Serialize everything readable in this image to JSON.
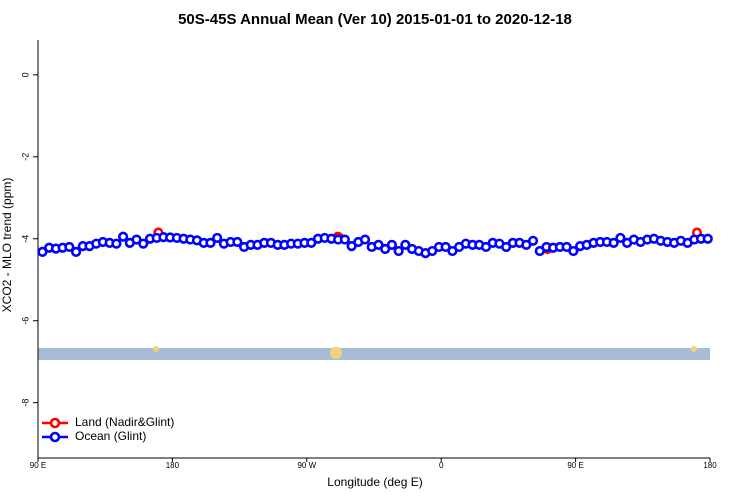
{
  "chart_data": {
    "type": "scatter",
    "title": "50S-45S Annual Mean (Ver 10)   2015-01-01 to 2020-12-18",
    "x_label": "Longitude (deg E)",
    "y_label": "XCO2 - MLO trend (ppm)",
    "xlim": [
      90,
      540
    ],
    "xticks": [
      {
        "value": 90,
        "label": "90 E"
      },
      {
        "value": 180,
        "label": "180"
      },
      {
        "value": 270,
        "label": "90 W"
      },
      {
        "value": 360,
        "label": "0"
      },
      {
        "value": 450,
        "label": "90 E"
      },
      {
        "value": 540,
        "label": "180"
      }
    ],
    "ylim": [
      -9.35,
      0.85
    ],
    "yticks": [
      0,
      -2,
      -4,
      -6,
      -8
    ],
    "legend": "bottom-left",
    "series": [
      {
        "name": "Land (Nadir&Glint)",
        "color": "#ff0000",
        "x": [
          170.6,
          290.8,
          292,
          431.2,
          531.3
        ],
        "values": [
          -3.85,
          -3.95,
          -3.98,
          -4.25,
          -3.85
        ]
      },
      {
        "name": "Ocean (Glint)",
        "color": "#0000ff",
        "x": [
          93,
          97.5,
          102,
          106.5,
          111,
          115.5,
          120,
          124.5,
          129,
          133.5,
          138,
          142.5,
          147,
          151.5,
          156,
          160.5,
          165,
          169.5,
          174,
          178.5,
          183,
          187.5,
          192,
          196.5,
          201,
          205.5,
          210,
          214.5,
          219,
          223.5,
          228,
          232.5,
          237,
          241.5,
          246,
          250.5,
          255,
          259.5,
          264,
          268.5,
          273,
          277.5,
          282,
          286.5,
          291,
          295.5,
          300,
          304.5,
          309,
          313.5,
          318,
          322.5,
          327,
          331.5,
          336,
          340.5,
          345,
          349.5,
          354,
          358.5,
          363,
          367.5,
          372,
          376.5,
          381,
          385.5,
          390,
          394.5,
          399,
          403.5,
          408,
          412.5,
          417,
          421.5,
          426,
          430.5,
          435,
          439.5,
          444,
          448.5,
          453,
          457.5,
          462,
          466.5,
          471,
          475.5,
          480,
          484.5,
          489,
          493.5,
          498,
          502.5,
          507,
          511.5,
          516,
          520.5,
          525,
          529.5,
          534,
          538.5
        ],
        "values": [
          -4.32,
          -4.22,
          -4.24,
          -4.22,
          -4.2,
          -4.32,
          -4.18,
          -4.18,
          -4.12,
          -4.08,
          -4.1,
          -4.12,
          -3.95,
          -4.1,
          -4.02,
          -4.12,
          -4.0,
          -3.98,
          -3.96,
          -3.97,
          -3.98,
          -4.0,
          -4.02,
          -4.04,
          -4.1,
          -4.1,
          -3.98,
          -4.12,
          -4.08,
          -4.08,
          -4.2,
          -4.15,
          -4.15,
          -4.1,
          -4.1,
          -4.15,
          -4.15,
          -4.12,
          -4.12,
          -4.1,
          -4.1,
          -4.0,
          -3.98,
          -4.0,
          -4.02,
          -4.02,
          -4.18,
          -4.08,
          -4.02,
          -4.2,
          -4.15,
          -4.25,
          -4.15,
          -4.3,
          -4.15,
          -4.25,
          -4.3,
          -4.35,
          -4.3,
          -4.2,
          -4.2,
          -4.3,
          -4.2,
          -4.12,
          -4.15,
          -4.15,
          -4.2,
          -4.1,
          -4.12,
          -4.2,
          -4.1,
          -4.1,
          -4.15,
          -4.05,
          -4.3,
          -4.2,
          -4.22,
          -4.2,
          -4.2,
          -4.3,
          -4.18,
          -4.15,
          -4.1,
          -4.08,
          -4.08,
          -4.1,
          -3.98,
          -4.1,
          -4.02,
          -4.08,
          -4.02,
          -4.0,
          -4.05,
          -4.08,
          -4.1,
          -4.05,
          -4.1,
          -4.02,
          -4.0,
          -4.0
        ]
      }
    ]
  }
}
